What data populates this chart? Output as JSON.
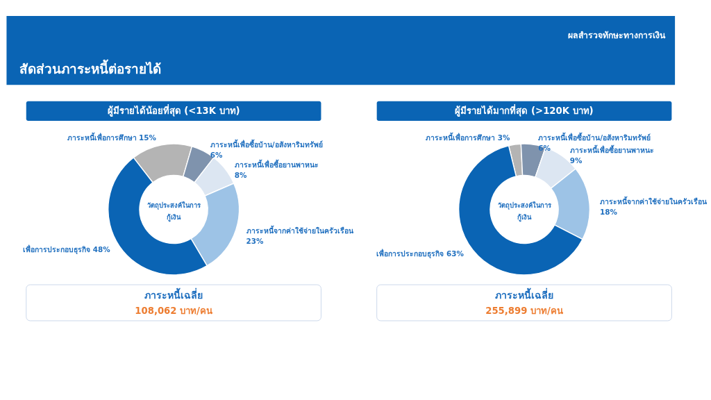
{
  "chart_data": [
    {
      "type": "donut",
      "title": "ผู้มีรายได้น้อยที่สุด (<13K บาท)",
      "categories": [
        "ภาระหนี้เพื่อการศึกษา",
        "ภาระหนี้เพื่อซื้อบ้าน/อสังหาริมทรัพย์",
        "ภาระหนี้เพื่อซื้อยานพาหนะ",
        "ภาระหนี้จากค่าใช้จ่ายในครัวเรือน",
        "เพื่อการประกอบธุรกิจ"
      ],
      "values": [
        15,
        6,
        8,
        23,
        48
      ],
      "value_labels": [
        "15%",
        "6%",
        "8%",
        "23%",
        "48%"
      ],
      "colors": [
        "#b4b4b4",
        "#7f93ad",
        "#dce6f2",
        "#9dc3e6",
        "#0a64b4"
      ],
      "legend": false,
      "annotations": [
        "วัตถุประสงค์ในการ\nกู้เงิน",
        "ภาระหนี้เฉลี่ย",
        "108,062 บาท/คน",
        "สัดส่วนภาระหนี้ต่อรายได้",
        "ผลสำรวจทักษะทางการเงิน"
      ]
    },
    {
      "type": "donut",
      "title": "ผู้มีรายได้มากที่สุด (>120K บาท)",
      "categories": [
        "ภาระหนี้เพื่อการศึกษา",
        "ภาระหนี้เพื่อซื้อบ้าน/อสังหาริมทรัพย์",
        "ภาระหนี้เพื่อซื้อยานพาหนะ",
        "ภาระหนี้จากค่าใช้จ่ายในครัวเรือน",
        "เพื่อการประกอบธุรกิจ"
      ],
      "values": [
        3,
        6,
        9,
        18,
        63
      ],
      "value_labels": [
        "3%",
        "6%",
        "9%",
        "18%",
        "63%"
      ],
      "colors": [
        "#b4b4b4",
        "#7f93ad",
        "#dce6f2",
        "#9dc3e6",
        "#0a64b4"
      ],
      "legend": false,
      "annotations": [
        "วัตถุประสงค์ในการ\nกู้เงิน",
        "ภาระหนี้เฉลี่ย",
        "255,899 บาท/คน"
      ]
    }
  ]
}
